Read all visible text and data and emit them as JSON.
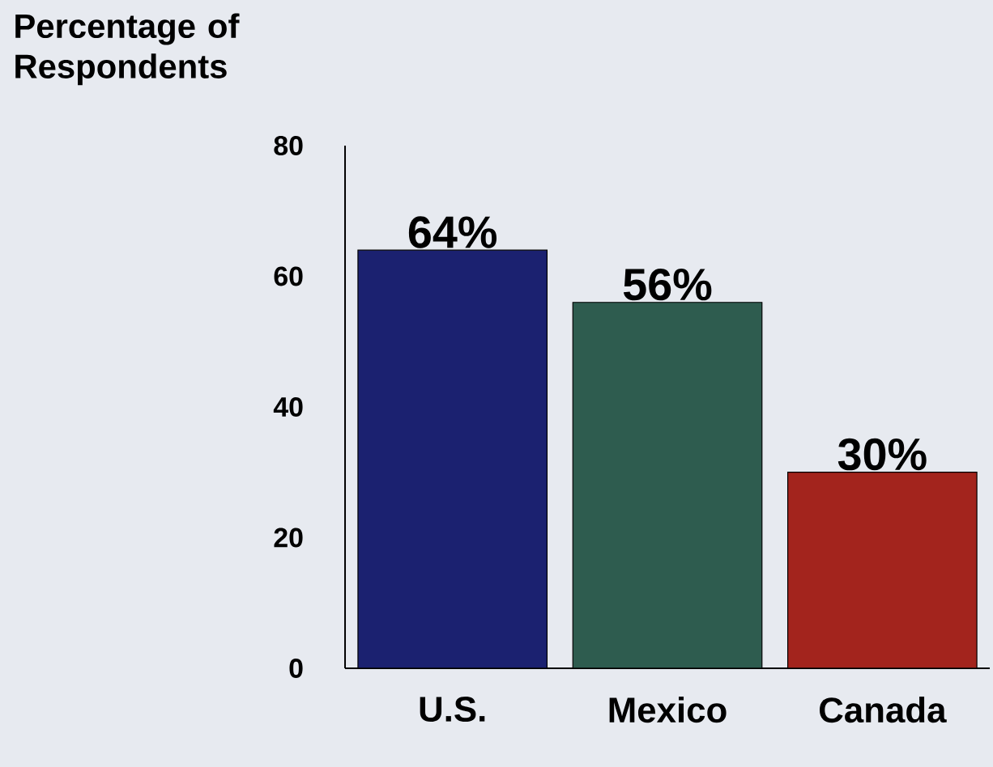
{
  "chart_data": {
    "type": "bar",
    "ylabel": "Percentage of Respondents",
    "categories": [
      "U.S.",
      "Mexico",
      "Canada"
    ],
    "values": [
      64,
      56,
      30
    ],
    "colors": [
      "#1b2170",
      "#2e5c4f",
      "#a3241d"
    ],
    "value_labels": [
      "64%",
      "56%",
      "30%"
    ],
    "ylim": [
      0,
      80
    ],
    "yticks": [
      0,
      20,
      40,
      60,
      80
    ],
    "grid": false
  }
}
